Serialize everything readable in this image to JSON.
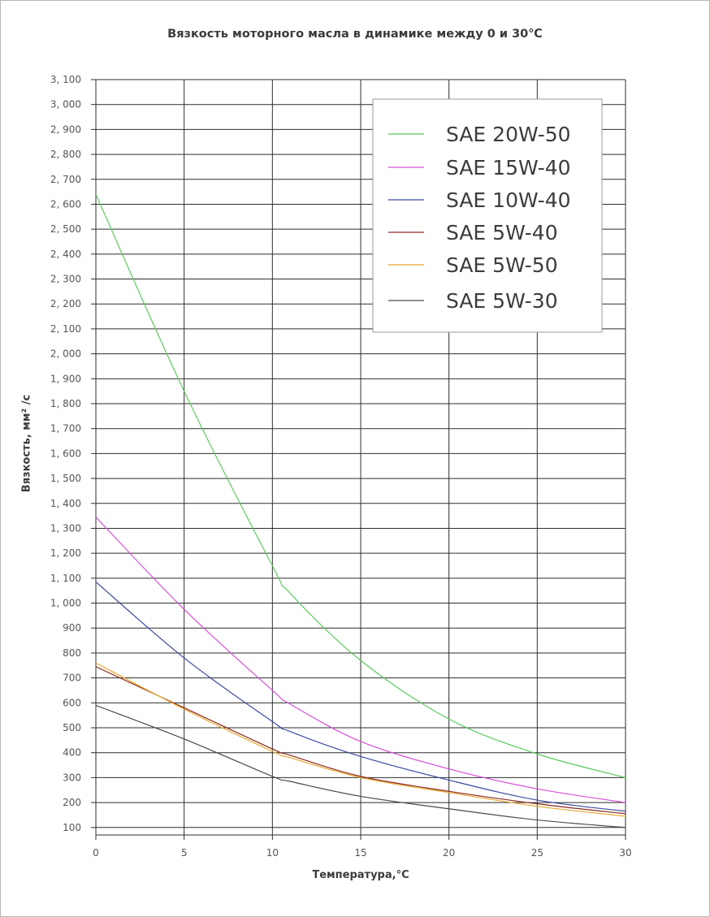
{
  "chart_data": {
    "type": "line",
    "title": "Вязкость моторного масла в динамике между 0 и 30℃",
    "xlabel": "Температура,°С",
    "ylabel": "Вязкость,  мм² /с",
    "xlim": [
      0,
      30
    ],
    "ylim": [
      70,
      3100
    ],
    "grid": true,
    "legend_position": "top-right",
    "x_ticks": [
      "0",
      "5",
      "10",
      "15",
      "20",
      "25",
      "30"
    ],
    "y_ticks": [
      {
        "value": 3100,
        "label": "3, 100"
      },
      {
        "value": 3000,
        "label": "3, 000"
      },
      {
        "value": 2900,
        "label": "2, 900"
      },
      {
        "value": 2800,
        "label": "2, 800"
      },
      {
        "value": 2700,
        "label": "2, 700"
      },
      {
        "value": 2600,
        "label": "2, 600"
      },
      {
        "value": 2500,
        "label": "2, 500"
      },
      {
        "value": 2400,
        "label": "2, 400"
      },
      {
        "value": 2300,
        "label": "2, 300"
      },
      {
        "value": 2200,
        "label": "2, 200"
      },
      {
        "value": 2100,
        "label": "2, 100"
      },
      {
        "value": 2000,
        "label": "2, 000"
      },
      {
        "value": 1900,
        "label": "1, 900"
      },
      {
        "value": 1800,
        "label": "1, 800"
      },
      {
        "value": 1700,
        "label": "1, 700"
      },
      {
        "value": 1600,
        "label": "1, 600"
      },
      {
        "value": 1500,
        "label": "1, 500"
      },
      {
        "value": 1400,
        "label": "1, 400"
      },
      {
        "value": 1300,
        "label": "1, 300"
      },
      {
        "value": 1200,
        "label": "1, 200"
      },
      {
        "value": 1100,
        "label": "1, 100"
      },
      {
        "value": 1000,
        "label": "1, 000"
      },
      {
        "value": 900,
        "label": "900"
      },
      {
        "value": 800,
        "label": "800"
      },
      {
        "value": 700,
        "label": "700"
      },
      {
        "value": 600,
        "label": "600"
      },
      {
        "value": 500,
        "label": "500"
      },
      {
        "value": 400,
        "label": "400"
      },
      {
        "value": 300,
        "label": "300"
      },
      {
        "value": 200,
        "label": "200"
      },
      {
        "value": 100,
        "label": "100"
      }
    ],
    "x": [
      0,
      5,
      10,
      11,
      15,
      20,
      25,
      30
    ],
    "series": [
      {
        "name": "SAE 20W-50",
        "color": "#5ccb5c",
        "values": [
          2640,
          1850,
          1150,
          1040,
          770,
          535,
          395,
          300
        ]
      },
      {
        "name": "SAE 15W-40",
        "color": "#d84fd8",
        "values": [
          1345,
          975,
          650,
          595,
          445,
          335,
          255,
          200
        ]
      },
      {
        "name": "SAE 10W-40",
        "color": "#3b4aa0",
        "values": [
          1085,
          780,
          525,
          485,
          385,
          290,
          210,
          165
        ]
      },
      {
        "name": "SAE 5W-40",
        "color": "#8b2a1e",
        "values": [
          745,
          580,
          415,
          390,
          305,
          245,
          195,
          155
        ]
      },
      {
        "name": "SAE 5W-50",
        "color": "#e6a82e",
        "values": [
          760,
          575,
          405,
          380,
          300,
          240,
          185,
          145
        ]
      },
      {
        "name": "SAE 5W-30",
        "color": "#4a4a4a",
        "values": [
          590,
          455,
          305,
          285,
          225,
          175,
          130,
          100
        ]
      }
    ]
  }
}
